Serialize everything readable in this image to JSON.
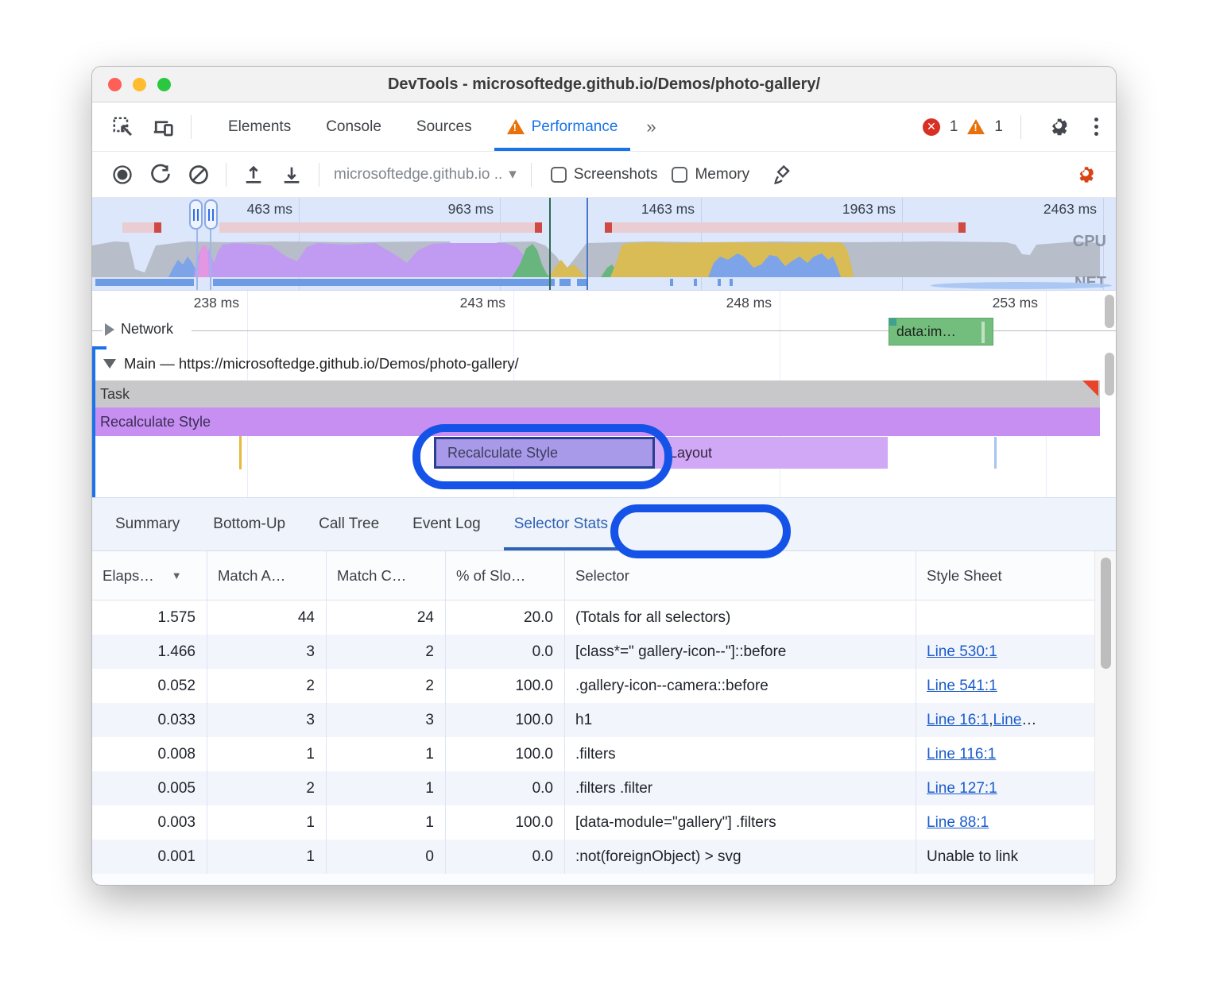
{
  "window": {
    "title": "DevTools - microsoftedge.github.io/Demos/photo-gallery/"
  },
  "tabbar": {
    "tabs": [
      {
        "label": "Elements",
        "active": false,
        "warn": false
      },
      {
        "label": "Console",
        "active": false,
        "warn": false
      },
      {
        "label": "Sources",
        "active": false,
        "warn": false
      },
      {
        "label": "Performance",
        "active": true,
        "warn": true
      }
    ],
    "more_chevron": "»",
    "error_count": "1",
    "warning_count": "1",
    "error_icon": "✕"
  },
  "toolbar": {
    "history_label": "microsoftedge.github.io ..",
    "dropdown_caret": "▾",
    "screenshots_label": "Screenshots",
    "memory_label": "Memory"
  },
  "overview": {
    "ticks": [
      "463 ms",
      "963 ms",
      "1463 ms",
      "1963 ms",
      "2463 ms"
    ],
    "cpu_label": "CPU",
    "net_label": "NET"
  },
  "flame": {
    "ticks": [
      "238 ms",
      "243 ms",
      "248 ms",
      "253 ms"
    ],
    "network_label": "Network",
    "network_request": "data:im…",
    "main_label": "Main — https://microsoftedge.github.io/Demos/photo-gallery/",
    "task_label": "Task",
    "recalc_track_label": "Recalculate Style",
    "selected_block_label": "Recalculate Style",
    "layout_label": "Layout"
  },
  "bottom_tabs": [
    {
      "label": "Summary",
      "active": false
    },
    {
      "label": "Bottom-Up",
      "active": false
    },
    {
      "label": "Call Tree",
      "active": false
    },
    {
      "label": "Event Log",
      "active": false
    },
    {
      "label": "Selector Stats",
      "active": true
    }
  ],
  "table": {
    "columns": [
      "Elaps…",
      "Match A…",
      "Match C…",
      "% of Slo…",
      "Selector",
      "Style Sheet"
    ],
    "sort_arrow": "▼",
    "rows": [
      {
        "elapsed": "1.575",
        "match_attempts": "44",
        "match_count": "24",
        "slow_pct": "20.0",
        "selector": "(Totals for all selectors)",
        "sheet": []
      },
      {
        "elapsed": "1.466",
        "match_attempts": "3",
        "match_count": "2",
        "slow_pct": "0.0",
        "selector": "[class*=\" gallery-icon--\"]::before",
        "sheet": [
          {
            "text": "Line 530:1",
            "link": true
          }
        ]
      },
      {
        "elapsed": "0.052",
        "match_attempts": "2",
        "match_count": "2",
        "slow_pct": "100.0",
        "selector": ".gallery-icon--camera::before",
        "sheet": [
          {
            "text": "Line 541:1",
            "link": true
          }
        ]
      },
      {
        "elapsed": "0.033",
        "match_attempts": "3",
        "match_count": "3",
        "slow_pct": "100.0",
        "selector": "h1",
        "sheet": [
          {
            "text": "Line 16:1",
            "link": true
          },
          {
            "text": " , ",
            "link": false
          },
          {
            "text": "Line",
            "link": true
          },
          {
            "text": "…",
            "link": false
          }
        ]
      },
      {
        "elapsed": "0.008",
        "match_attempts": "1",
        "match_count": "1",
        "slow_pct": "100.0",
        "selector": ".filters",
        "sheet": [
          {
            "text": "Line 116:1",
            "link": true
          }
        ]
      },
      {
        "elapsed": "0.005",
        "match_attempts": "2",
        "match_count": "1",
        "slow_pct": "0.0",
        "selector": ".filters .filter",
        "sheet": [
          {
            "text": "Line 127:1",
            "link": true
          }
        ]
      },
      {
        "elapsed": "0.003",
        "match_attempts": "1",
        "match_count": "1",
        "slow_pct": "100.0",
        "selector": "[data-module=\"gallery\"] .filters",
        "sheet": [
          {
            "text": "Line 88:1",
            "link": true
          }
        ]
      },
      {
        "elapsed": "0.001",
        "match_attempts": "1",
        "match_count": "0",
        "slow_pct": "0.0",
        "selector": ":not(foreignObject) > svg",
        "sheet": [
          {
            "text": "Unable to link",
            "link": false
          }
        ]
      }
    ]
  },
  "colors": {
    "accent_blue": "#1a73e8",
    "annotation_blue": "#1553e8",
    "cpu_scripting_yellow": "#d9bc55",
    "cpu_rendering_purple": "#c19bf2",
    "cpu_painting_green": "#69b57e",
    "cpu_loading_blue": "#7da4e8",
    "cpu_other_gray": "#b7bdc9",
    "error_red": "#d93025",
    "warning_orange": "#e8710a"
  }
}
